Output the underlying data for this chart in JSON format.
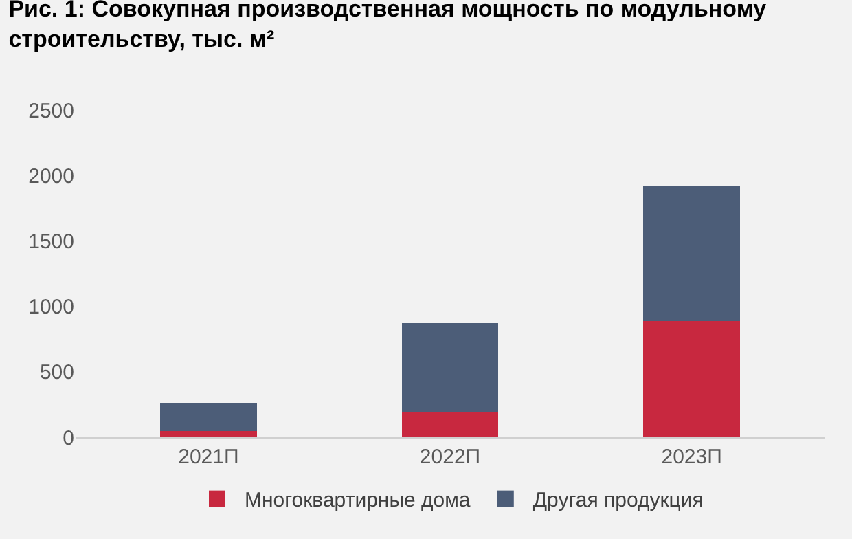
{
  "chart_data": {
    "type": "bar",
    "title": "Рис. 1: Совокупная производственная мощность по модульному строительству, тыс. м²",
    "categories": [
      "2021П",
      "2022П",
      "2023П"
    ],
    "stacked": true,
    "series": [
      {
        "name": "Многоквартирные дома",
        "color": "#c8283f",
        "values": [
          45,
          195,
          890
        ]
      },
      {
        "name": "Другая продукция",
        "color": "#4c5d78",
        "values": [
          220,
          675,
          1025
        ]
      }
    ],
    "ylim": [
      0,
      2500
    ],
    "yticks": [
      0,
      500,
      1000,
      1500,
      2000,
      2500
    ],
    "grid": false,
    "legend": "bottom"
  }
}
